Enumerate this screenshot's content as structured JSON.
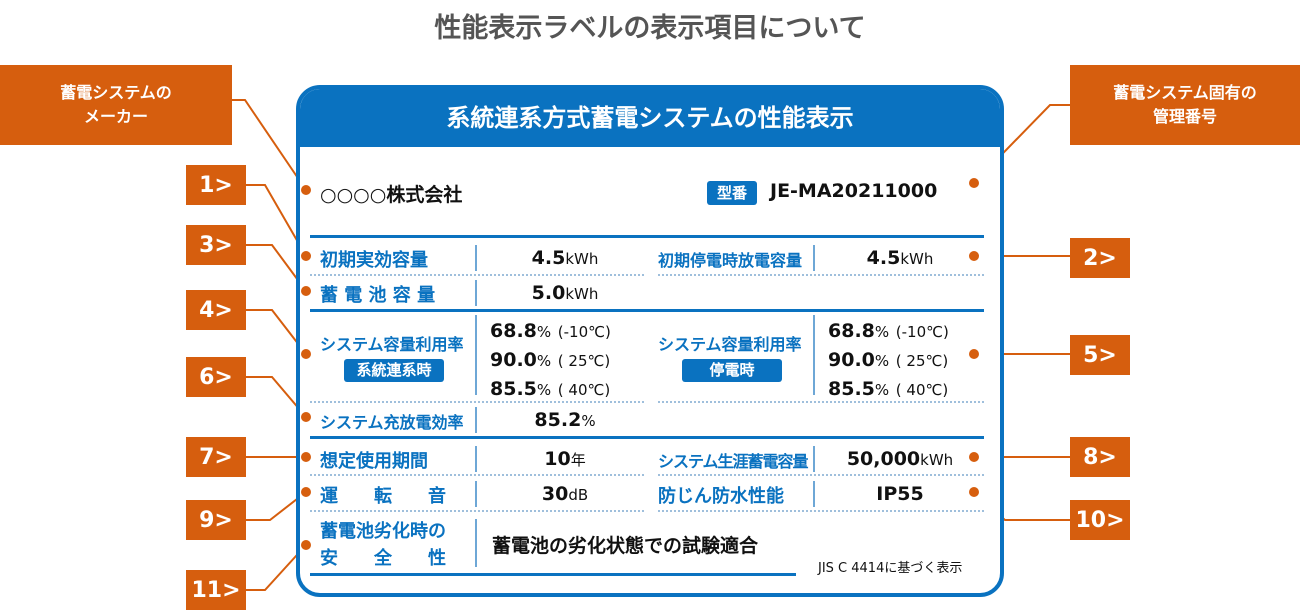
{
  "title": "性能表示ラベルの表示項目について",
  "card": {
    "header": "系統連系方式蓄電システムの性能表示",
    "maker": "○○○○株式会社",
    "model_badge": "型番",
    "model": "JE-MA20211000",
    "rows": {
      "initial_effective_capacity": {
        "label": "初期実効容量",
        "value": "4.5",
        "unit": "kWh"
      },
      "initial_outage_discharge": {
        "label": "初期停電時放電容量",
        "value": "4.5",
        "unit": "kWh"
      },
      "battery_capacity": {
        "label": "蓄 電 池 容 量",
        "value": "5.0",
        "unit": "kWh"
      },
      "util_grid": {
        "label": "システム容量利用率",
        "badge": "系統連系時",
        "values": [
          {
            "v": "68.8",
            "u": "%",
            "t": "(-10℃)"
          },
          {
            "v": "90.0",
            "u": "%",
            "t": "( 25℃)"
          },
          {
            "v": "85.5",
            "u": "%",
            "t": "( 40℃)"
          }
        ]
      },
      "util_outage": {
        "label": "システム容量利用率",
        "badge": "停電時",
        "values": [
          {
            "v": "68.8",
            "u": "%",
            "t": "(-10℃)"
          },
          {
            "v": "90.0",
            "u": "%",
            "t": "( 25℃)"
          },
          {
            "v": "85.5",
            "u": "%",
            "t": "( 40℃)"
          }
        ]
      },
      "efficiency": {
        "label": "システム充放電効率",
        "value": "85.2",
        "unit": "%"
      },
      "lifetime": {
        "label": "想定使用期間",
        "value": "10",
        "unit": "年"
      },
      "lifetime_storage": {
        "label": "システム生涯蓄電容量",
        "value": "50,000",
        "unit": "kWh"
      },
      "noise": {
        "label": "運　　転　　音",
        "value": "30",
        "unit": "dB"
      },
      "ip": {
        "label": "防じん防水性能",
        "value": "IP55"
      },
      "safety": {
        "label1": "蓄電池劣化時の",
        "label2": "安　　全　　性",
        "value": "蓄電池の劣化状態での試験適合"
      }
    },
    "jis": "JIS C 4414に基づく表示"
  },
  "callouts": {
    "maker": "蓄電システムの\nメーカー",
    "model_id": "蓄電システム固有の\n管理番号",
    "numbers": [
      "1>",
      "2>",
      "3>",
      "4>",
      "5>",
      "6>",
      "7>",
      "8>",
      "9>",
      "10>",
      "11>"
    ]
  },
  "colors": {
    "blue": "#0a72c0",
    "orange": "#d65e0e",
    "title": "#555555"
  }
}
